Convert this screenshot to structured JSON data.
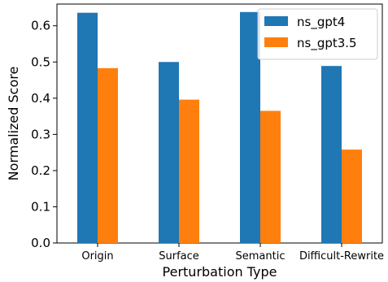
{
  "chart_data": {
    "type": "bar",
    "title": "",
    "xlabel": "Perturbation Type",
    "ylabel": "Normalized Score",
    "categories": [
      "Origin",
      "Surface",
      "Semantic",
      "Difficult-Rewrite"
    ],
    "series": [
      {
        "name": "ns_gpt4",
        "color": "#1f77b4",
        "values": [
          0.636,
          0.5,
          0.638,
          0.489
        ]
      },
      {
        "name": "ns_gpt3.5",
        "color": "#ff7f0e",
        "values": [
          0.483,
          0.396,
          0.365,
          0.258
        ]
      }
    ],
    "ylim": [
      0,
      0.66
    ],
    "yticks": [
      "0.0",
      "0.1",
      "0.2",
      "0.3",
      "0.4",
      "0.5",
      "0.6"
    ],
    "grid": false,
    "legend_position": "top-right"
  }
}
